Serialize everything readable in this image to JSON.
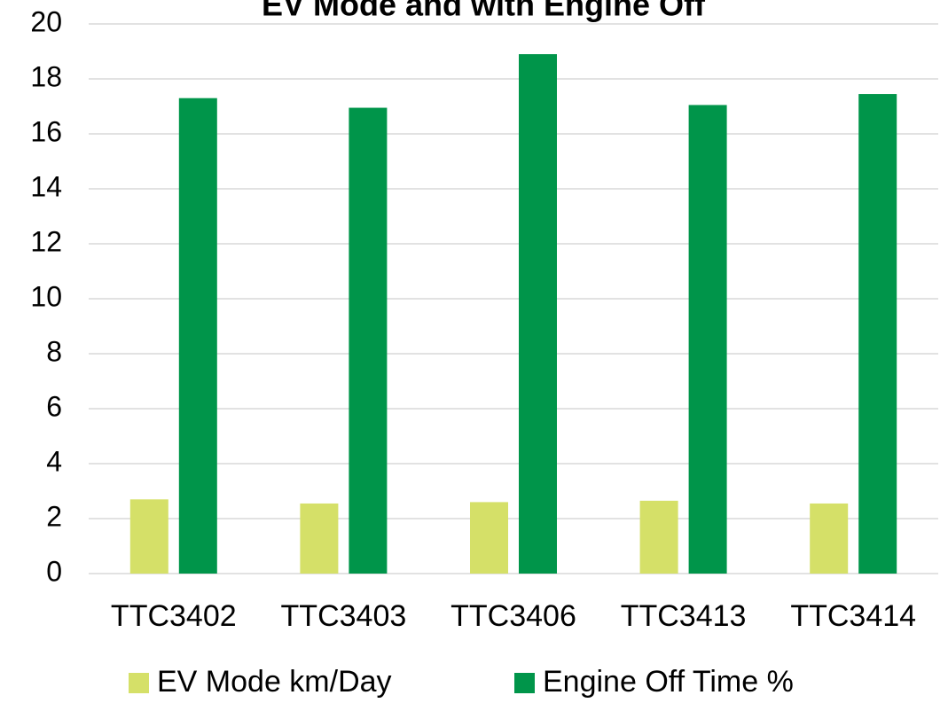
{
  "chart_data": {
    "type": "bar",
    "title": "EV Mode and with Engine Off",
    "categories": [
      "TTC3402",
      "TTC3403",
      "TTC3406",
      "TTC3413",
      "TTC3414"
    ],
    "series": [
      {
        "name": "EV Mode km/Day",
        "color": "#d5e068",
        "values": [
          2.7,
          2.55,
          2.6,
          2.65,
          2.55
        ]
      },
      {
        "name": "Engine Off Time %",
        "color": "#00954a",
        "values": [
          17.3,
          16.95,
          18.9,
          17.05,
          17.45
        ]
      }
    ],
    "ylim": [
      0,
      20
    ],
    "yticks": [
      0,
      2,
      4,
      6,
      8,
      10,
      12,
      14,
      16,
      18,
      20
    ],
    "grid": true,
    "legend": "bottom"
  }
}
